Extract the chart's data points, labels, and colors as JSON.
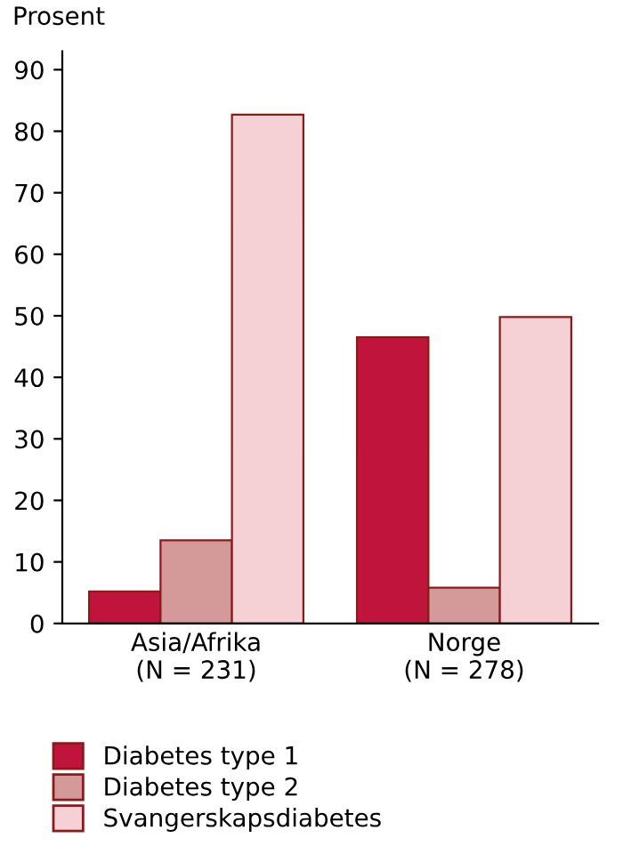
{
  "chart_data": {
    "type": "bar",
    "ylabel": "Prosent",
    "categories": [
      "Asia/Afrika\n(N = 231)",
      "Norge\n(N = 278)"
    ],
    "series": [
      {
        "name": "Diabetes type 1",
        "color": "#c0143c",
        "values": [
          5.2,
          46.5
        ]
      },
      {
        "name": "Diabetes type 2",
        "color": "#d49a9a",
        "values": [
          13.5,
          5.8
        ]
      },
      {
        "name": "Svangerskapsdiabetes",
        "color": "#f5d0d5",
        "values": [
          82.7,
          49.8
        ]
      }
    ],
    "ylim": [
      0,
      93
    ],
    "yticks": [
      0,
      10,
      20,
      30,
      40,
      50,
      60,
      70,
      80,
      90
    ],
    "grid": false,
    "legend": "bottom"
  }
}
